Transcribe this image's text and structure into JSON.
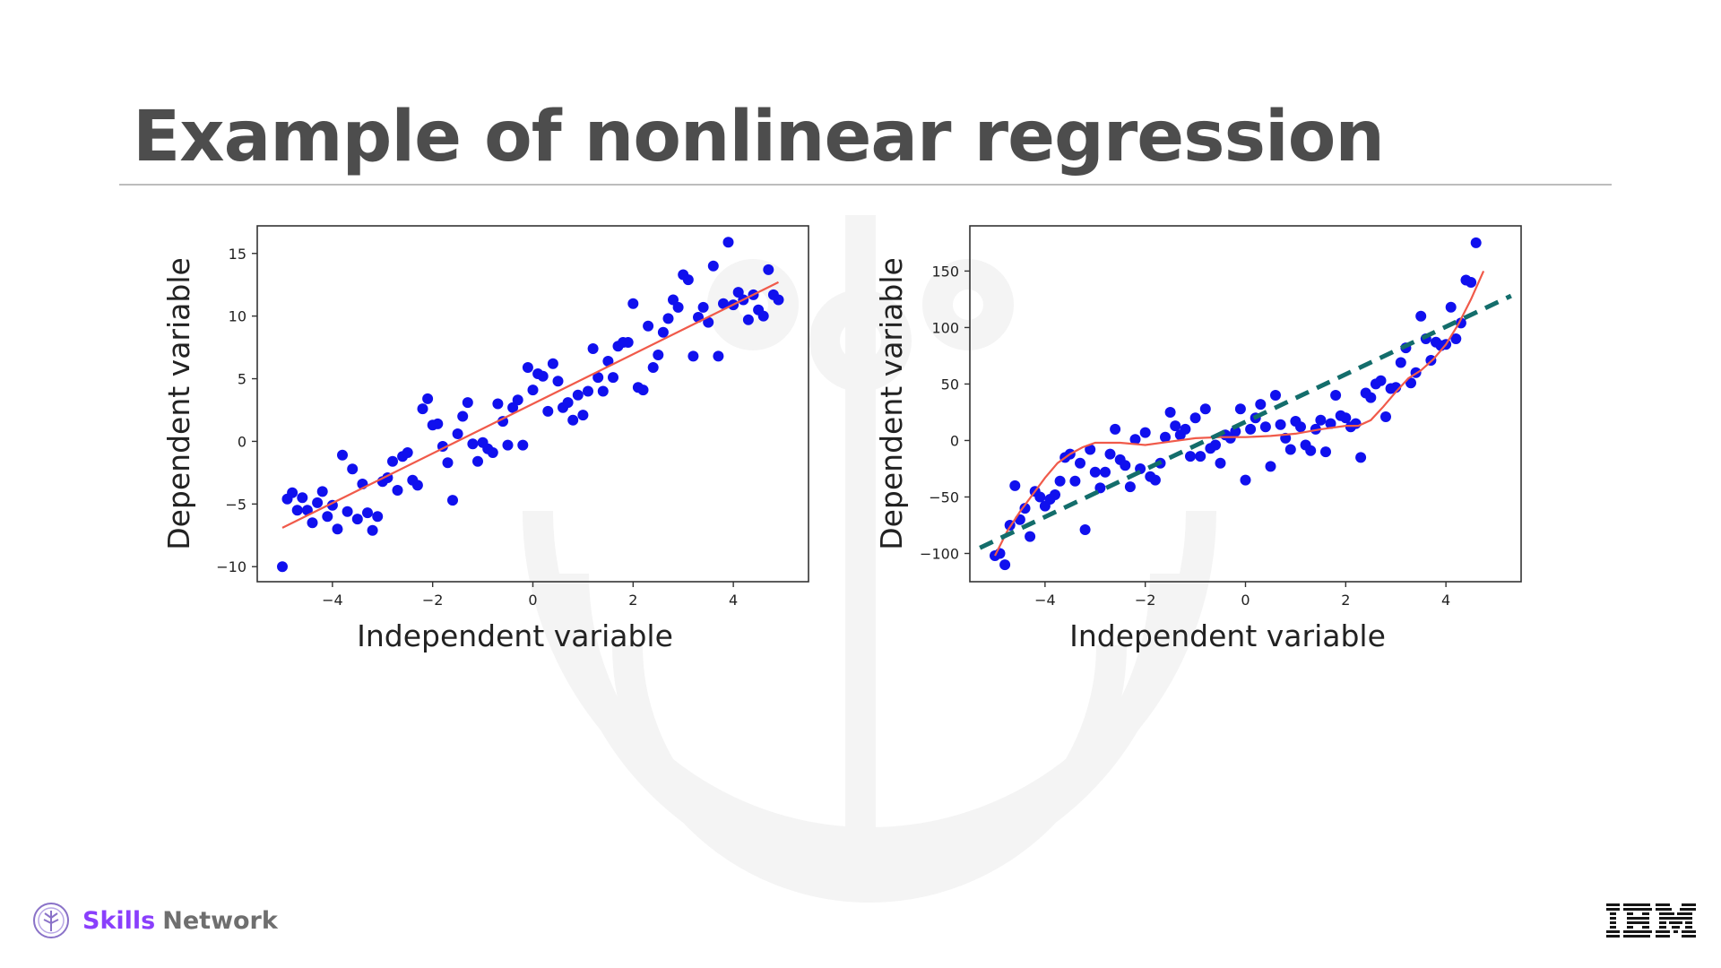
{
  "slide": {
    "title": "Example of nonlinear regression"
  },
  "branding": {
    "skills_strong": "Skills",
    "skills_rest": "Network",
    "logo_icon": "skills-network-tree-icon",
    "ibm_icon": "ibm-logo-icon",
    "accent_color": "#8a3ffc"
  },
  "chart_data": [
    {
      "type": "scatter",
      "title": "",
      "xlabel": "Independent variable",
      "ylabel": "Dependent variable",
      "xlim": [
        -5.5,
        5.5
      ],
      "ylim": [
        -11.2,
        17.2
      ],
      "xticks": [
        -4,
        -2,
        0,
        2,
        4
      ],
      "xtick_labels": [
        "−4",
        "−2",
        "0",
        "2",
        "4"
      ],
      "yticks": [
        -10,
        -5,
        0,
        5,
        10,
        15
      ],
      "ytick_labels": [
        "−10",
        "−5",
        "0",
        "5",
        "10",
        "15"
      ],
      "grid": false,
      "series": [
        {
          "name": "data",
          "kind": "points",
          "color": "#1010ee",
          "points": [
            [
              -5.0,
              -10.0
            ],
            [
              -4.9,
              -4.6
            ],
            [
              -4.8,
              -4.1
            ],
            [
              -4.7,
              -5.5
            ],
            [
              -4.6,
              -4.5
            ],
            [
              -4.5,
              -5.5
            ],
            [
              -4.4,
              -6.5
            ],
            [
              -4.3,
              -4.9
            ],
            [
              -4.2,
              -4.0
            ],
            [
              -4.1,
              -6.0
            ],
            [
              -4.0,
              -5.1
            ],
            [
              -3.9,
              -7.0
            ],
            [
              -3.8,
              -1.1
            ],
            [
              -3.7,
              -5.6
            ],
            [
              -3.6,
              -2.2
            ],
            [
              -3.5,
              -6.2
            ],
            [
              -3.4,
              -3.4
            ],
            [
              -3.3,
              -5.7
            ],
            [
              -3.2,
              -7.1
            ],
            [
              -3.1,
              -6.0
            ],
            [
              -3.0,
              -3.2
            ],
            [
              -2.9,
              -2.9
            ],
            [
              -2.8,
              -1.6
            ],
            [
              -2.7,
              -3.9
            ],
            [
              -2.6,
              -1.2
            ],
            [
              -2.5,
              -0.9
            ],
            [
              -2.4,
              -3.1
            ],
            [
              -2.3,
              -3.5
            ],
            [
              -2.2,
              2.6
            ],
            [
              -2.1,
              3.4
            ],
            [
              -2.0,
              1.3
            ],
            [
              -1.9,
              1.4
            ],
            [
              -1.8,
              -0.4
            ],
            [
              -1.7,
              -1.7
            ],
            [
              -1.6,
              -4.7
            ],
            [
              -1.5,
              0.6
            ],
            [
              -1.4,
              2.0
            ],
            [
              -1.3,
              3.1
            ],
            [
              -1.2,
              -0.2
            ],
            [
              -1.1,
              -1.6
            ],
            [
              -1.0,
              -0.1
            ],
            [
              -0.9,
              -0.6
            ],
            [
              -0.8,
              -0.9
            ],
            [
              -0.7,
              3.0
            ],
            [
              -0.6,
              1.6
            ],
            [
              -0.5,
              -0.3
            ],
            [
              -0.4,
              2.7
            ],
            [
              -0.3,
              3.3
            ],
            [
              -0.2,
              -0.3
            ],
            [
              -0.1,
              5.9
            ],
            [
              0.0,
              4.1
            ],
            [
              0.1,
              5.4
            ],
            [
              0.2,
              5.2
            ],
            [
              0.3,
              2.4
            ],
            [
              0.4,
              6.2
            ],
            [
              0.5,
              4.8
            ],
            [
              0.6,
              2.7
            ],
            [
              0.7,
              3.1
            ],
            [
              0.8,
              1.7
            ],
            [
              0.9,
              3.7
            ],
            [
              1.0,
              2.1
            ],
            [
              1.1,
              4.0
            ],
            [
              1.2,
              7.4
            ],
            [
              1.3,
              5.1
            ],
            [
              1.4,
              4.0
            ],
            [
              1.5,
              6.4
            ],
            [
              1.6,
              5.1
            ],
            [
              1.7,
              7.6
            ],
            [
              1.8,
              7.9
            ],
            [
              1.9,
              7.9
            ],
            [
              2.0,
              11.0
            ],
            [
              2.1,
              4.3
            ],
            [
              2.2,
              4.1
            ],
            [
              2.3,
              9.2
            ],
            [
              2.4,
              5.9
            ],
            [
              2.5,
              6.9
            ],
            [
              2.6,
              8.7
            ],
            [
              2.7,
              9.8
            ],
            [
              2.8,
              11.3
            ],
            [
              2.9,
              10.7
            ],
            [
              3.0,
              13.3
            ],
            [
              3.1,
              12.9
            ],
            [
              3.2,
              6.8
            ],
            [
              3.3,
              9.9
            ],
            [
              3.4,
              10.7
            ],
            [
              3.5,
              9.5
            ],
            [
              3.6,
              14.0
            ],
            [
              3.7,
              6.8
            ],
            [
              3.8,
              11.0
            ],
            [
              3.9,
              15.9
            ],
            [
              4.0,
              10.9
            ],
            [
              4.1,
              11.9
            ],
            [
              4.2,
              11.3
            ],
            [
              4.3,
              9.7
            ],
            [
              4.4,
              11.7
            ],
            [
              4.5,
              10.5
            ],
            [
              4.6,
              10.0
            ],
            [
              4.7,
              13.7
            ],
            [
              4.8,
              11.7
            ],
            [
              4.9,
              11.3
            ]
          ]
        },
        {
          "name": "linear fit",
          "kind": "line",
          "color": "#f05a4a",
          "points": [
            [
              -5.0,
              -6.9
            ],
            [
              4.9,
              12.7
            ]
          ]
        }
      ]
    },
    {
      "type": "scatter",
      "title": "",
      "xlabel": "Independent variable",
      "ylabel": "Dependent variable",
      "xlim": [
        -5.5,
        5.5
      ],
      "ylim": [
        -125,
        190
      ],
      "xticks": [
        -4,
        -2,
        0,
        2,
        4
      ],
      "xtick_labels": [
        "−4",
        "−2",
        "0",
        "2",
        "4"
      ],
      "yticks": [
        -100,
        -50,
        0,
        50,
        100,
        150
      ],
      "ytick_labels": [
        "−100",
        "−50",
        "0",
        "50",
        "100",
        "150"
      ],
      "grid": false,
      "series": [
        {
          "name": "data",
          "kind": "points",
          "color": "#1010ee",
          "points": [
            [
              -5.0,
              -102
            ],
            [
              -4.9,
              -100
            ],
            [
              -4.8,
              -110
            ],
            [
              -4.7,
              -75
            ],
            [
              -4.6,
              -40
            ],
            [
              -4.5,
              -70
            ],
            [
              -4.4,
              -60
            ],
            [
              -4.3,
              -85
            ],
            [
              -4.2,
              -45
            ],
            [
              -4.1,
              -50
            ],
            [
              -4.0,
              -58
            ],
            [
              -3.9,
              -52
            ],
            [
              -3.8,
              -48
            ],
            [
              -3.7,
              -36
            ],
            [
              -3.6,
              -15
            ],
            [
              -3.5,
              -12
            ],
            [
              -3.4,
              -36
            ],
            [
              -3.3,
              -20
            ],
            [
              -3.2,
              -79
            ],
            [
              -3.1,
              -8
            ],
            [
              -3.0,
              -28
            ],
            [
              -2.9,
              -42
            ],
            [
              -2.8,
              -28
            ],
            [
              -2.7,
              -12
            ],
            [
              -2.6,
              10
            ],
            [
              -2.5,
              -17
            ],
            [
              -2.4,
              -22
            ],
            [
              -2.3,
              -41
            ],
            [
              -2.2,
              1
            ],
            [
              -2.1,
              -25
            ],
            [
              -2.0,
              7
            ],
            [
              -1.9,
              -32
            ],
            [
              -1.8,
              -35
            ],
            [
              -1.7,
              -20
            ],
            [
              -1.6,
              3
            ],
            [
              -1.5,
              25
            ],
            [
              -1.4,
              13
            ],
            [
              -1.3,
              5
            ],
            [
              -1.2,
              10
            ],
            [
              -1.1,
              -14
            ],
            [
              -1.0,
              20
            ],
            [
              -0.9,
              -14
            ],
            [
              -0.8,
              28
            ],
            [
              -0.7,
              -7
            ],
            [
              -0.6,
              -4
            ],
            [
              -0.5,
              -20
            ],
            [
              -0.4,
              5
            ],
            [
              -0.3,
              2
            ],
            [
              -0.2,
              8
            ],
            [
              -0.1,
              28
            ],
            [
              0.0,
              -35
            ],
            [
              0.1,
              10
            ],
            [
              0.2,
              20
            ],
            [
              0.3,
              32
            ],
            [
              0.4,
              12
            ],
            [
              0.5,
              -23
            ],
            [
              0.6,
              40
            ],
            [
              0.7,
              14
            ],
            [
              0.8,
              2
            ],
            [
              0.9,
              -8
            ],
            [
              1.0,
              17
            ],
            [
              1.1,
              12
            ],
            [
              1.2,
              -4
            ],
            [
              1.3,
              -9
            ],
            [
              1.4,
              10
            ],
            [
              1.5,
              18
            ],
            [
              1.6,
              -10
            ],
            [
              1.7,
              15
            ],
            [
              1.8,
              40
            ],
            [
              1.9,
              22
            ],
            [
              2.0,
              20
            ],
            [
              2.1,
              12
            ],
            [
              2.2,
              15
            ],
            [
              2.3,
              -15
            ],
            [
              2.4,
              42
            ],
            [
              2.5,
              38
            ],
            [
              2.6,
              50
            ],
            [
              2.7,
              53
            ],
            [
              2.8,
              21
            ],
            [
              2.9,
              46
            ],
            [
              3.0,
              47
            ],
            [
              3.1,
              69
            ],
            [
              3.2,
              82
            ],
            [
              3.3,
              51
            ],
            [
              3.4,
              60
            ],
            [
              3.5,
              110
            ],
            [
              3.6,
              90
            ],
            [
              3.7,
              71
            ],
            [
              3.8,
              87
            ],
            [
              3.9,
              84
            ],
            [
              4.0,
              85
            ],
            [
              4.1,
              118
            ],
            [
              4.2,
              90
            ],
            [
              4.3,
              104
            ],
            [
              4.4,
              142
            ],
            [
              4.5,
              140
            ],
            [
              4.6,
              175
            ]
          ]
        },
        {
          "name": "polynomial fit",
          "kind": "line",
          "color": "#f05a4a",
          "points": [
            [
              -5.0,
              -102
            ],
            [
              -4.75,
              -80
            ],
            [
              -4.5,
              -63
            ],
            [
              -4.25,
              -48
            ],
            [
              -4.0,
              -33
            ],
            [
              -3.75,
              -20
            ],
            [
              -3.5,
              -12
            ],
            [
              -3.25,
              -6
            ],
            [
              -3.0,
              -2
            ],
            [
              -2.5,
              -2
            ],
            [
              -2.0,
              -4
            ],
            [
              -1.5,
              -1
            ],
            [
              -1.0,
              2
            ],
            [
              -0.5,
              3
            ],
            [
              0.0,
              3
            ],
            [
              0.5,
              4
            ],
            [
              1.0,
              6
            ],
            [
              1.5,
              10
            ],
            [
              2.0,
              13
            ],
            [
              2.25,
              13
            ],
            [
              2.5,
              18
            ],
            [
              2.75,
              30
            ],
            [
              3.0,
              43
            ],
            [
              3.25,
              55
            ],
            [
              3.5,
              62
            ],
            [
              3.75,
              72
            ],
            [
              4.0,
              85
            ],
            [
              4.25,
              103
            ],
            [
              4.5,
              125
            ],
            [
              4.75,
              150
            ]
          ]
        },
        {
          "name": "linear fit",
          "kind": "dashed-line",
          "color": "#136d6b",
          "points": [
            [
              -5.3,
              -95
            ],
            [
              5.3,
              128
            ]
          ]
        }
      ]
    }
  ]
}
